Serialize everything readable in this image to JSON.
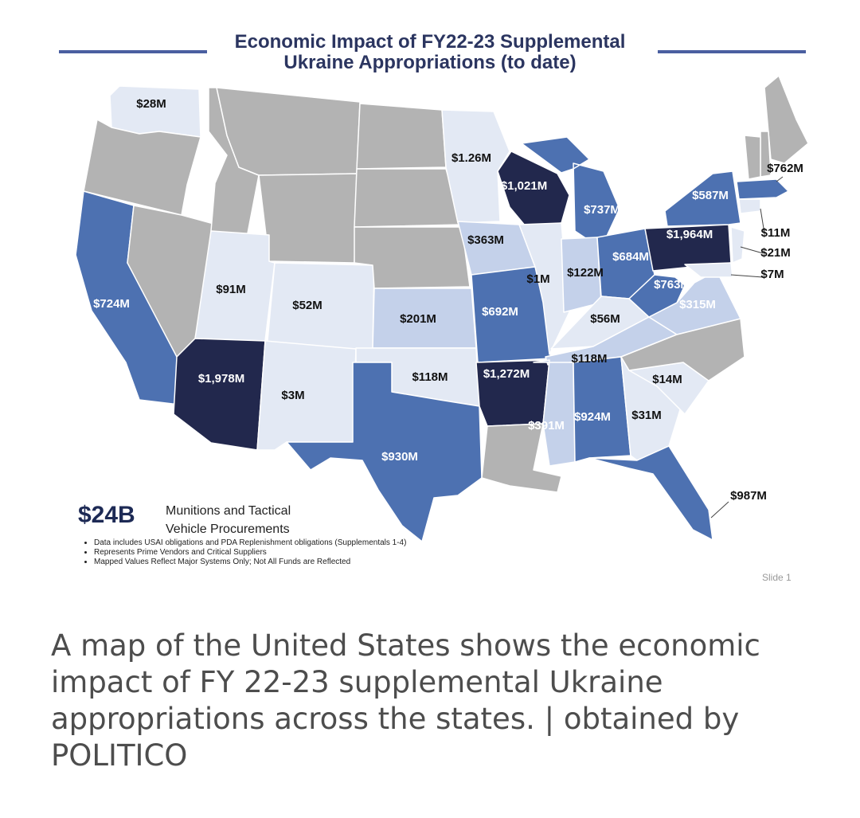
{
  "slide": {
    "title_line1": "Economic Impact of FY22-23 Supplemental",
    "title_line2": "Ukraine Appropriations (to date)",
    "summary_amount": "$24B",
    "summary_label_line1": "Munitions and Tactical",
    "summary_label_line2": "Vehicle Procurements",
    "notes": [
      "Data includes USAI obligations and PDA Replenishment obligations (Supplementals 1-4)",
      "Represents Prime Vendors and Critical Suppliers",
      "Mapped Values Reflect Major Systems Only; Not All Funds are Reflected"
    ],
    "slide_number": "Slide 1"
  },
  "legend_colors": {
    "none": "#b3b3b3",
    "low": "#e3e9f4",
    "lowmid": "#c4d1ea",
    "mid": "#4d71b1",
    "high": "#22284d"
  },
  "states": [
    {
      "id": "WA",
      "value": "$28M",
      "level": "low"
    },
    {
      "id": "OR",
      "value": "",
      "level": "none"
    },
    {
      "id": "CA",
      "value": "$724M",
      "level": "mid"
    },
    {
      "id": "NV",
      "value": "",
      "level": "none"
    },
    {
      "id": "ID",
      "value": "",
      "level": "none"
    },
    {
      "id": "MT",
      "value": "",
      "level": "none"
    },
    {
      "id": "WY",
      "value": "",
      "level": "none"
    },
    {
      "id": "UT",
      "value": "$91M",
      "level": "low"
    },
    {
      "id": "AZ",
      "value": "$1,978M",
      "level": "high"
    },
    {
      "id": "CO",
      "value": "$52M",
      "level": "low"
    },
    {
      "id": "NM",
      "value": "$3M",
      "level": "low"
    },
    {
      "id": "ND",
      "value": "",
      "level": "none"
    },
    {
      "id": "SD",
      "value": "",
      "level": "none"
    },
    {
      "id": "NE",
      "value": "",
      "level": "none"
    },
    {
      "id": "KS",
      "value": "$201M",
      "level": "lowmid"
    },
    {
      "id": "OK",
      "value": "$118M",
      "level": "low"
    },
    {
      "id": "TX",
      "value": "$930M",
      "level": "mid"
    },
    {
      "id": "MN",
      "value": "$1.26M",
      "level": "low"
    },
    {
      "id": "IA",
      "value": "$363M",
      "level": "lowmid"
    },
    {
      "id": "MO",
      "value": "$692M",
      "level": "mid"
    },
    {
      "id": "AR",
      "value": "$1,272M",
      "level": "high"
    },
    {
      "id": "LA",
      "value": "",
      "level": "none"
    },
    {
      "id": "WI",
      "value": "$1,021M",
      "level": "high"
    },
    {
      "id": "IL",
      "value": "$1M",
      "level": "low"
    },
    {
      "id": "MI",
      "value": "$737M",
      "level": "mid"
    },
    {
      "id": "IN",
      "value": "$122M",
      "level": "lowmid"
    },
    {
      "id": "OH",
      "value": "$684M",
      "level": "mid"
    },
    {
      "id": "KY",
      "value": "$56M",
      "level": "low"
    },
    {
      "id": "TN",
      "value": "$118M",
      "level": "lowmid"
    },
    {
      "id": "MS",
      "value": "$391M",
      "level": "lowmid"
    },
    {
      "id": "AL",
      "value": "$924M",
      "level": "mid"
    },
    {
      "id": "GA",
      "value": "$31M",
      "level": "low"
    },
    {
      "id": "FL",
      "value": "$987M",
      "level": "mid"
    },
    {
      "id": "SC",
      "value": "$14M",
      "level": "low"
    },
    {
      "id": "NC",
      "value": "",
      "level": "none"
    },
    {
      "id": "VA",
      "value": "$315M",
      "level": "lowmid"
    },
    {
      "id": "WV",
      "value": "$763M",
      "level": "mid"
    },
    {
      "id": "PA",
      "value": "$1,964M",
      "level": "high"
    },
    {
      "id": "NY",
      "value": "$587M",
      "level": "mid"
    },
    {
      "id": "ME",
      "value": "",
      "level": "none"
    },
    {
      "id": "NH",
      "value": "",
      "level": "none"
    },
    {
      "id": "VT",
      "value": "",
      "level": "none"
    },
    {
      "id": "MA",
      "value": "$762M",
      "level": "mid"
    },
    {
      "id": "CT",
      "value": "$11M",
      "level": "low"
    },
    {
      "id": "NJ",
      "value": "$21M",
      "level": "low"
    },
    {
      "id": "MD",
      "value": "$7M",
      "level": "low"
    }
  ],
  "caption": "A map of the United States shows the economic impact of FY 22-23 supplemental Ukraine appropriations across the states. | obtained by POLITICO"
}
